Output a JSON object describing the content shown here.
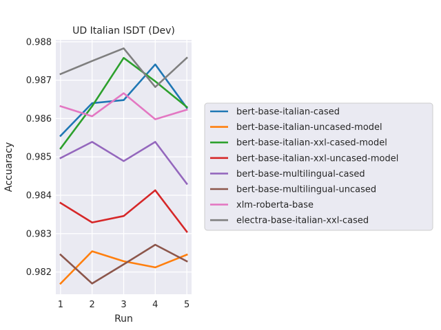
{
  "chart_data": {
    "type": "line",
    "title": "UD Italian ISDT (Dev)",
    "xlabel": "Run",
    "ylabel": "Accuaracy",
    "x": [
      1,
      2,
      3,
      4,
      5
    ],
    "ylim": [
      0.98142,
      0.98805
    ],
    "xlim": [
      0.85,
      5.15
    ],
    "yticks": [
      0.982,
      0.983,
      0.984,
      0.985,
      0.986,
      0.987,
      0.988
    ],
    "ytick_labels": [
      "0.982",
      "0.983",
      "0.984",
      "0.985",
      "0.986",
      "0.987",
      "0.988"
    ],
    "xtick_labels": [
      "1",
      "2",
      "3",
      "4",
      "5"
    ],
    "grid": true,
    "legend_position": "right",
    "series": [
      {
        "name": "bert-base-italian-cased",
        "color": "#1f77b4",
        "values": [
          0.98555,
          0.9864,
          0.98648,
          0.98741,
          0.98628
        ]
      },
      {
        "name": "bert-base-italian-uncased-model",
        "color": "#ff7f0e",
        "values": [
          0.9817,
          0.98254,
          0.98228,
          0.98212,
          0.98245
        ]
      },
      {
        "name": "bert-base-italian-xxl-cased-model",
        "color": "#2ca02c",
        "values": [
          0.98522,
          0.98632,
          0.98758,
          0.98697,
          0.9863
        ]
      },
      {
        "name": "bert-base-italian-xxl-uncased-model",
        "color": "#d62728",
        "values": [
          0.9838,
          0.98329,
          0.98346,
          0.98413,
          0.98305
        ]
      },
      {
        "name": "bert-base-multilingual-cased",
        "color": "#9467bd",
        "values": [
          0.98497,
          0.98539,
          0.98489,
          0.98539,
          0.9843
        ]
      },
      {
        "name": "bert-base-multilingual-uncased",
        "color": "#8c564b",
        "values": [
          0.98245,
          0.9817,
          0.9822,
          0.98271,
          0.98228
        ]
      },
      {
        "name": "xlm-roberta-base",
        "color": "#e377c2",
        "values": [
          0.98632,
          0.98606,
          0.98666,
          0.98598,
          0.98623
        ]
      },
      {
        "name": "electra-base-italian-xxl-cased",
        "color": "#7f7f7f",
        "values": [
          0.98716,
          0.9875,
          0.98783,
          0.98682,
          0.98758
        ]
      }
    ]
  }
}
